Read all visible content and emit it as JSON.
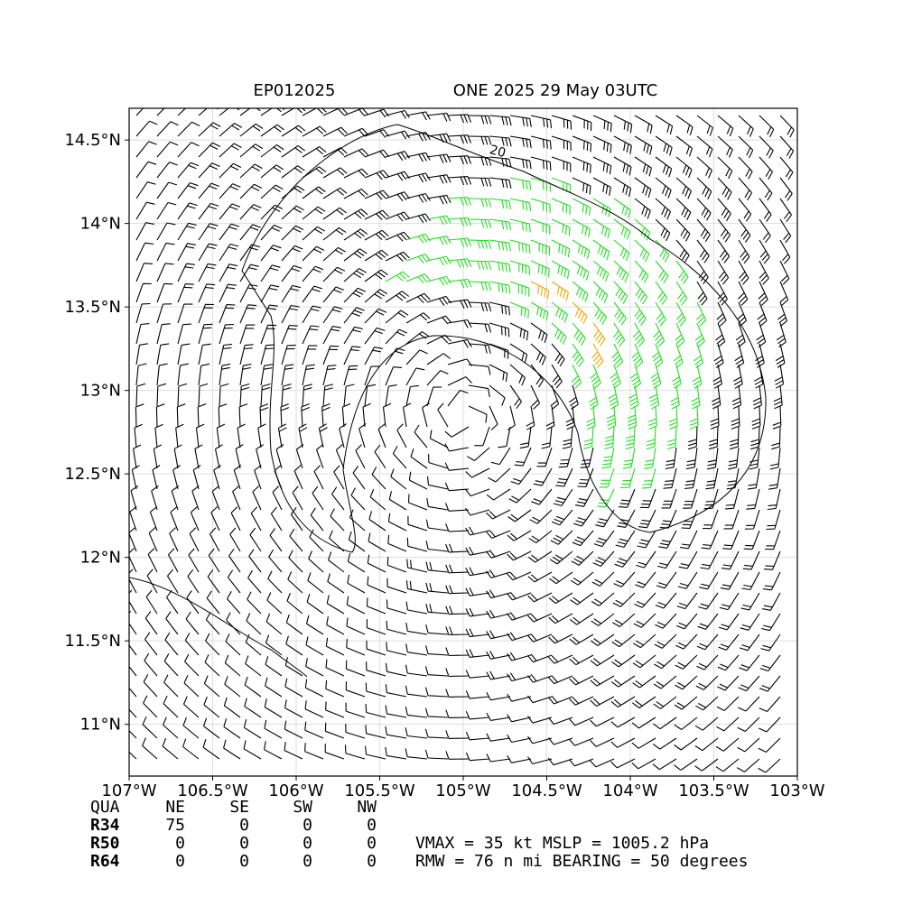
{
  "chart_data": {
    "type": "wind-barb-map",
    "title_left": "EP012025",
    "title_right": "ONE 2025 29 May 03UTC",
    "xlim": [
      -107,
      -103
    ],
    "ylim": [
      10.69,
      14.69
    ],
    "xticks": [
      {
        "value": -107,
        "label": "107°W"
      },
      {
        "value": -106.5,
        "label": "106.5°W"
      },
      {
        "value": -106,
        "label": "106°W"
      },
      {
        "value": -105.5,
        "label": "105.5°W"
      },
      {
        "value": -105,
        "label": "105°W"
      },
      {
        "value": -104.5,
        "label": "104.5°W"
      },
      {
        "value": -104,
        "label": "104°W"
      },
      {
        "value": -103.5,
        "label": "103.5°W"
      },
      {
        "value": -103,
        "label": "103°W"
      }
    ],
    "yticks": [
      {
        "value": 11,
        "label": "11°N"
      },
      {
        "value": 11.5,
        "label": "11.5°N"
      },
      {
        "value": 12,
        "label": "12°N"
      },
      {
        "value": 12.5,
        "label": "12.5°N"
      },
      {
        "value": 13,
        "label": "13°N"
      },
      {
        "value": 13.5,
        "label": "13.5°N"
      },
      {
        "value": 14,
        "label": "14°N"
      },
      {
        "value": 14.5,
        "label": "14.5°N"
      }
    ],
    "grid": true,
    "contour_label": "20",
    "radii_table": {
      "header": [
        "QUA",
        "NE",
        "SE",
        "SW",
        "NW"
      ],
      "rows": [
        [
          "R34",
          75,
          0,
          0,
          0
        ],
        [
          "R50",
          0,
          0,
          0,
          0
        ],
        [
          "R64",
          0,
          0,
          0,
          0
        ]
      ]
    },
    "info_lines": [
      "VMAX =  35 kt MSLP = 1005.2 hPa",
      "RMW =  76 n mi BEARING =  50 degrees"
    ]
  }
}
